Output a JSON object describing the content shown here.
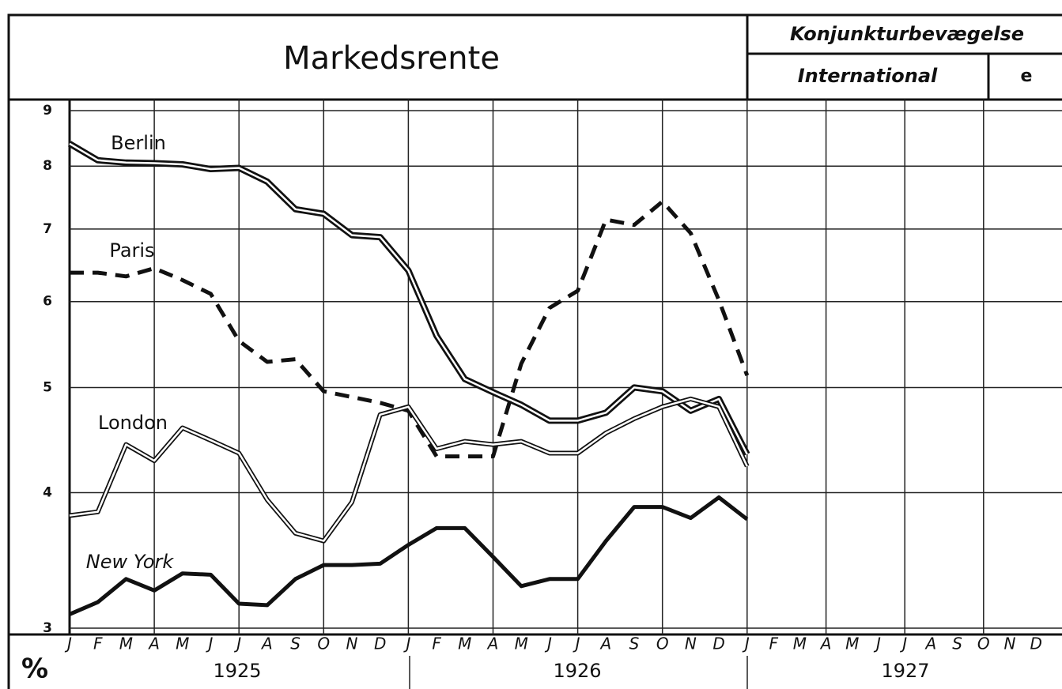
{
  "chart_data": {
    "type": "line",
    "title": "Markedsrente",
    "header": {
      "section": "Konjunkturbevægelse",
      "subsection": "International",
      "code": "e"
    },
    "ylabel": "%",
    "log_scale": true,
    "grid": true,
    "ylim": [
      3,
      9
    ],
    "yticks": [
      3,
      4,
      5,
      6,
      7,
      8,
      9
    ],
    "categories": [
      "J",
      "F",
      "M",
      "A",
      "M",
      "J",
      "J",
      "A",
      "S",
      "O",
      "N",
      "D",
      "J",
      "F",
      "M",
      "A",
      "M",
      "J",
      "J",
      "A",
      "S",
      "O",
      "N",
      "D",
      "J",
      "F",
      "M",
      "A",
      "M",
      "J",
      "J",
      "A",
      "S",
      "O",
      "N",
      "D"
    ],
    "year_labels": [
      "1925",
      "1926",
      "1927"
    ],
    "series": [
      {
        "name": "Berlin",
        "color": "#111111",
        "style": "double",
        "values": [
          8.39,
          8.1,
          8.06,
          8.05,
          8.03,
          7.95,
          7.97,
          7.74,
          7.3,
          7.23,
          6.91,
          6.88,
          6.41,
          5.58,
          5.09,
          4.95,
          4.82,
          4.66,
          4.66,
          4.74,
          5.0,
          4.96,
          4.76,
          4.88,
          4.34,
          null,
          null,
          null,
          null,
          null,
          null,
          null,
          null,
          null,
          null,
          null
        ]
      },
      {
        "name": "Paris",
        "color": "#111111",
        "style": "dashed",
        "values": [
          6.38,
          6.38,
          6.33,
          6.44,
          6.28,
          6.1,
          5.52,
          5.28,
          5.31,
          4.96,
          4.9,
          4.84,
          4.76,
          4.32,
          4.32,
          4.32,
          5.26,
          5.92,
          6.14,
          7.14,
          7.06,
          7.42,
          6.94,
          6.02,
          5.13,
          null,
          null,
          null,
          null,
          null,
          null,
          null,
          null,
          null,
          null,
          null
        ]
      },
      {
        "name": "London",
        "color": "#111111",
        "style": "hollow",
        "values": [
          3.81,
          3.84,
          4.43,
          4.28,
          4.59,
          4.47,
          4.35,
          3.94,
          3.67,
          3.61,
          3.92,
          4.72,
          4.8,
          4.39,
          4.46,
          4.43,
          4.46,
          4.35,
          4.35,
          4.54,
          4.68,
          4.8,
          4.88,
          4.8,
          4.23,
          null,
          null,
          null,
          null,
          null,
          null,
          null,
          null,
          null,
          null,
          null
        ]
      },
      {
        "name": "New York",
        "color": "#111111",
        "style": "solid",
        "values": [
          3.09,
          3.17,
          3.33,
          3.25,
          3.37,
          3.36,
          3.16,
          3.15,
          3.33,
          3.43,
          3.43,
          3.44,
          3.58,
          3.71,
          3.71,
          3.49,
          3.28,
          3.33,
          3.33,
          3.61,
          3.88,
          3.88,
          3.79,
          3.96,
          3.78,
          null,
          null,
          null,
          null,
          null,
          null,
          null,
          null,
          null,
          null,
          null
        ]
      }
    ]
  }
}
